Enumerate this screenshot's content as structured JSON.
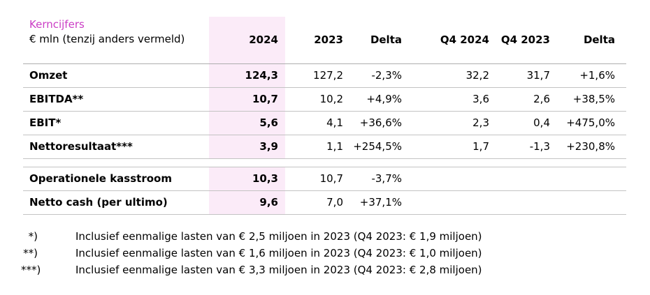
{
  "table": {
    "title": "Kerncijfers",
    "subtitle": "€ mln (tenzij anders vermeld)",
    "columns": [
      "2024",
      "2023",
      "Delta",
      "Q4 2024",
      "Q4 2023",
      "Delta"
    ],
    "sections": [
      {
        "rows": [
          {
            "label": "Omzet",
            "values": [
              "124,3",
              "127,2",
              "-2,3%",
              "32,2",
              "31,7",
              "+1,6%"
            ]
          },
          {
            "label": "EBITDA**",
            "values": [
              "10,7",
              "10,2",
              "+4,9%",
              "3,6",
              "2,6",
              "+38,5%"
            ]
          },
          {
            "label": "EBIT*",
            "values": [
              "5,6",
              "4,1",
              "+36,6%",
              "2,3",
              "0,4",
              "+475,0%"
            ]
          },
          {
            "label": "Nettoresultaat***",
            "values": [
              "3,9",
              "1,1",
              "+254,5%",
              "1,7",
              "-1,3",
              "+230,8%"
            ]
          }
        ]
      },
      {
        "rows": [
          {
            "label": "Operationele kasstroom",
            "values": [
              "10,3",
              "10,7",
              "-3,7%",
              "",
              "",
              ""
            ]
          },
          {
            "label": "Netto cash (per ultimo)",
            "values": [
              "9,6",
              "7,0",
              "+37,1%",
              "",
              "",
              ""
            ]
          }
        ]
      }
    ]
  },
  "footnotes": [
    {
      "marker": "*)",
      "text": "Inclusief eenmalige lasten van € 2,5 miljoen in 2023 (Q4 2023: € 1,9 miljoen)"
    },
    {
      "marker": "**)",
      "text": "Inclusief eenmalige lasten van € 1,6 miljoen in 2023 (Q4 2023: € 1,0 miljoen)"
    },
    {
      "marker": "***)",
      "text": "Inclusief eenmalige lasten van € 3,3 miljoen in 2023 (Q4 2023: € 2,8 miljoen)"
    }
  ],
  "colors": {
    "accent_title": "#cb3dc5",
    "column_highlight": "#fbebf8",
    "rule_line": "#c3c3c3",
    "text": "#000000"
  }
}
